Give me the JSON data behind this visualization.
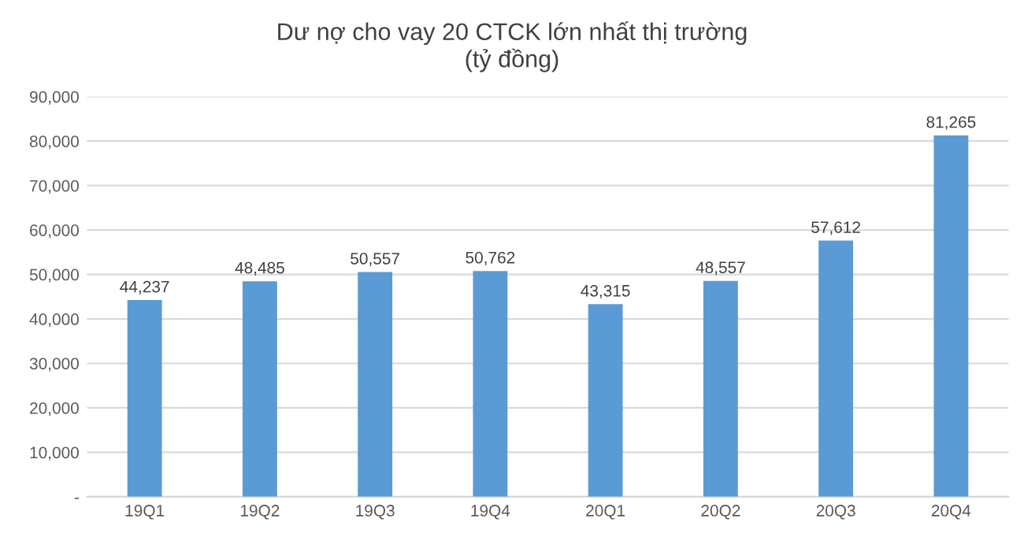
{
  "chart_data": {
    "type": "bar",
    "title": "Dư nợ cho vay 20 CTCK lớn nhất thị trường\n(tỷ đồng)",
    "categories": [
      "19Q1",
      "19Q2",
      "19Q3",
      "19Q4",
      "20Q1",
      "20Q2",
      "20Q3",
      "20Q4"
    ],
    "values": [
      44237,
      48485,
      50557,
      50762,
      43315,
      48557,
      57612,
      81265
    ],
    "value_labels": [
      "44,237",
      "48,485",
      "50,557",
      "50,762",
      "43,315",
      "48,557",
      "57,612",
      "81,265"
    ],
    "color": "#5b9bd5",
    "ylim": [
      0,
      90000
    ],
    "yticks": [
      {
        "value": 0,
        "label": "-"
      },
      {
        "value": 10000,
        "label": "10,000"
      },
      {
        "value": 20000,
        "label": "20,000"
      },
      {
        "value": 30000,
        "label": "30,000"
      },
      {
        "value": 40000,
        "label": "40,000"
      },
      {
        "value": 50000,
        "label": "50,000"
      },
      {
        "value": 60000,
        "label": "60,000"
      },
      {
        "value": 70000,
        "label": "70,000"
      },
      {
        "value": 80000,
        "label": "80,000"
      },
      {
        "value": 90000,
        "label": "90,000"
      }
    ],
    "grid": "y"
  }
}
